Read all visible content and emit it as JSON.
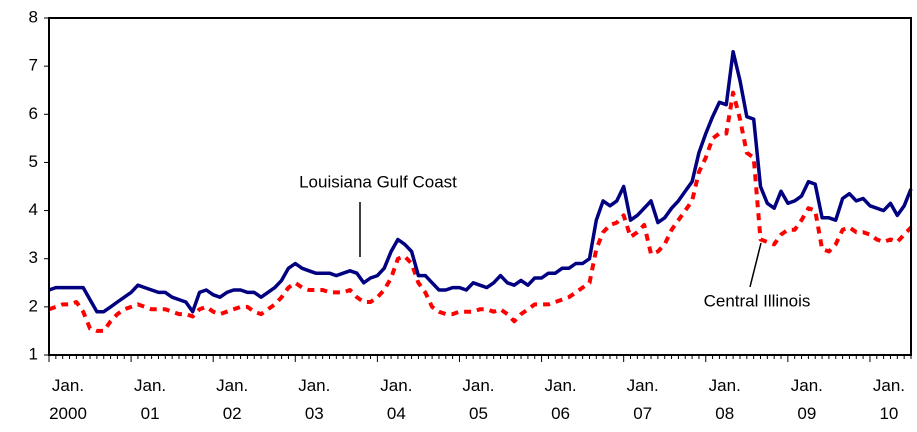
{
  "chart_data": {
    "type": "line",
    "categories": [
      "Jan.\n2000",
      null,
      null,
      null,
      null,
      null,
      null,
      null,
      null,
      null,
      null,
      null,
      "Jan.\n01",
      null,
      null,
      null,
      null,
      null,
      null,
      null,
      null,
      null,
      null,
      null,
      "Jan.\n02",
      null,
      null,
      null,
      null,
      null,
      null,
      null,
      null,
      null,
      null,
      null,
      "Jan.\n03",
      null,
      null,
      null,
      null,
      null,
      null,
      null,
      null,
      null,
      null,
      null,
      "Jan.\n04",
      null,
      null,
      null,
      null,
      null,
      null,
      null,
      null,
      null,
      null,
      null,
      "Jan.\n05",
      null,
      null,
      null,
      null,
      null,
      null,
      null,
      null,
      null,
      null,
      null,
      "Jan.\n06",
      null,
      null,
      null,
      null,
      null,
      null,
      null,
      null,
      null,
      null,
      null,
      "Jan.\n07",
      null,
      null,
      null,
      null,
      null,
      null,
      null,
      null,
      null,
      null,
      null,
      "Jan.\n08",
      null,
      null,
      null,
      null,
      null,
      null,
      null,
      null,
      null,
      null,
      null,
      "Jan.\n09",
      null,
      null,
      null,
      null,
      null,
      null,
      null,
      null,
      null,
      null,
      null,
      "Jan.\n10",
      null,
      null,
      null,
      null,
      null,
      null
    ],
    "series": [
      {
        "name": "Louisiana Gulf Coast",
        "color": "#000080",
        "style": "solid",
        "values": [
          2.35,
          2.4,
          2.4,
          2.4,
          2.4,
          2.4,
          2.15,
          1.9,
          1.9,
          2.0,
          2.1,
          2.2,
          2.3,
          2.45,
          2.4,
          2.35,
          2.3,
          2.3,
          2.2,
          2.15,
          2.1,
          1.9,
          2.3,
          2.35,
          2.25,
          2.2,
          2.3,
          2.35,
          2.35,
          2.3,
          2.3,
          2.2,
          2.3,
          2.4,
          2.55,
          2.8,
          2.9,
          2.8,
          2.75,
          2.7,
          2.7,
          2.7,
          2.65,
          2.7,
          2.75,
          2.7,
          2.5,
          2.6,
          2.65,
          2.8,
          3.15,
          3.4,
          3.3,
          3.15,
          2.65,
          2.65,
          2.5,
          2.35,
          2.35,
          2.4,
          2.4,
          2.35,
          2.5,
          2.45,
          2.4,
          2.5,
          2.65,
          2.5,
          2.45,
          2.55,
          2.45,
          2.6,
          2.6,
          2.7,
          2.7,
          2.8,
          2.8,
          2.9,
          2.9,
          3.0,
          3.8,
          4.2,
          4.1,
          4.2,
          4.5,
          3.8,
          3.9,
          4.05,
          4.2,
          3.75,
          3.85,
          4.05,
          4.2,
          4.4,
          4.6,
          5.2,
          5.6,
          5.95,
          6.25,
          6.2,
          7.3,
          6.7,
          5.95,
          5.9,
          4.5,
          4.15,
          4.05,
          4.4,
          4.15,
          4.2,
          4.3,
          4.6,
          4.55,
          3.85,
          3.85,
          3.8,
          4.25,
          4.35,
          4.2,
          4.25,
          4.1,
          4.05,
          4.0,
          4.15,
          3.9,
          4.1,
          4.45
        ]
      },
      {
        "name": "Central Illinois",
        "color": "#ff0000",
        "style": "dashed",
        "values": [
          1.95,
          2.0,
          2.05,
          2.05,
          2.1,
          1.9,
          1.55,
          1.5,
          1.5,
          1.7,
          1.85,
          1.95,
          2.0,
          2.05,
          2.0,
          1.95,
          1.95,
          1.95,
          1.9,
          1.85,
          1.85,
          1.8,
          1.95,
          2.0,
          1.9,
          1.85,
          1.9,
          1.95,
          2.0,
          2.0,
          1.9,
          1.85,
          1.95,
          2.05,
          2.2,
          2.4,
          2.5,
          2.4,
          2.35,
          2.35,
          2.35,
          2.3,
          2.3,
          2.3,
          2.35,
          2.2,
          2.1,
          2.1,
          2.2,
          2.35,
          2.6,
          3.0,
          3.05,
          2.9,
          2.5,
          2.3,
          2.0,
          1.9,
          1.85,
          1.85,
          1.9,
          1.9,
          1.9,
          1.95,
          1.95,
          1.9,
          1.95,
          1.85,
          1.7,
          1.85,
          1.95,
          2.05,
          2.05,
          2.05,
          2.1,
          2.15,
          2.2,
          2.3,
          2.4,
          2.5,
          3.2,
          3.55,
          3.7,
          3.75,
          3.9,
          3.45,
          3.55,
          3.7,
          3.1,
          3.15,
          3.3,
          3.6,
          3.8,
          4.0,
          4.2,
          4.8,
          5.1,
          5.5,
          5.6,
          5.6,
          6.45,
          5.9,
          5.2,
          5.1,
          3.4,
          3.35,
          3.3,
          3.5,
          3.6,
          3.6,
          3.8,
          4.05,
          4.0,
          3.2,
          3.15,
          3.3,
          3.6,
          3.65,
          3.55,
          3.55,
          3.5,
          3.4,
          3.35,
          3.4,
          3.35,
          3.5,
          3.65
        ]
      }
    ],
    "ylim": [
      1,
      8
    ],
    "yticks": [
      1,
      2,
      3,
      4,
      5,
      6,
      7,
      8
    ]
  }
}
